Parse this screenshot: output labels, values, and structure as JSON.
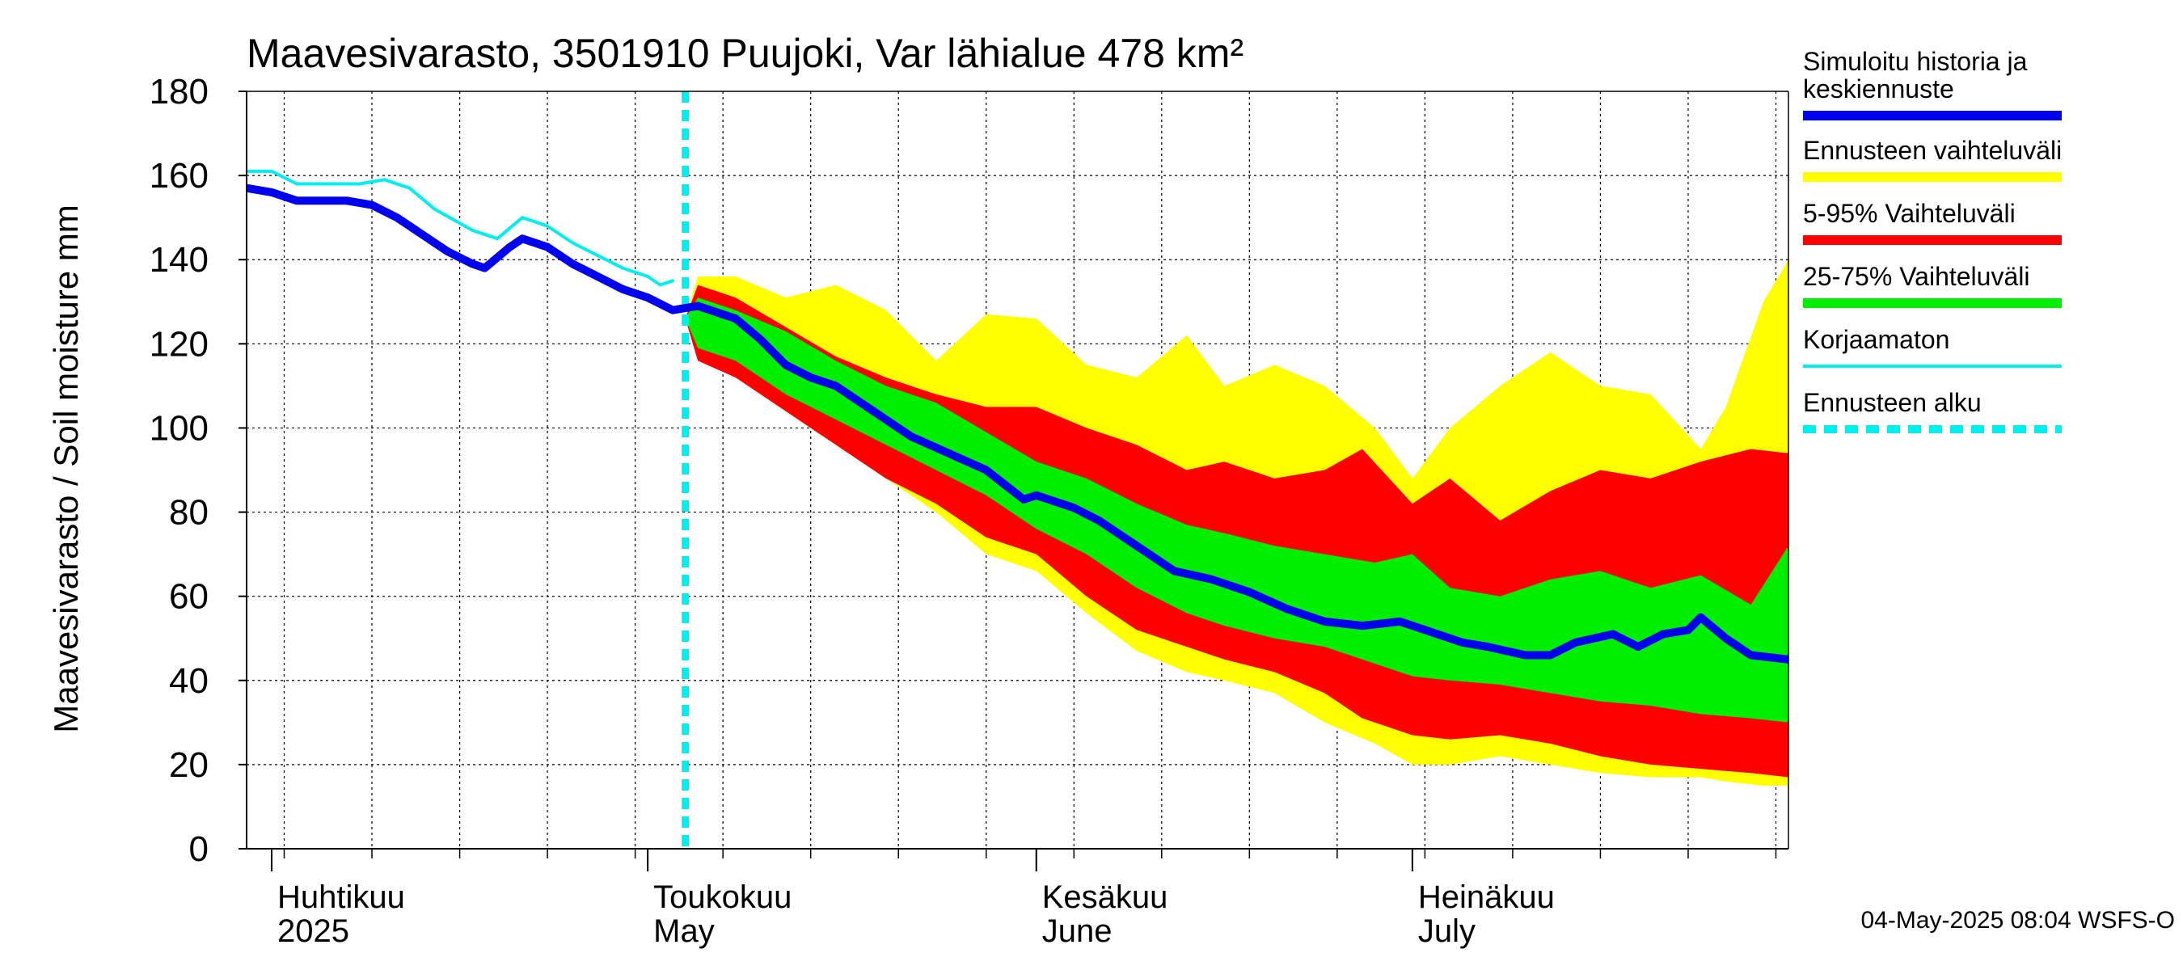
{
  "chart_data": {
    "type": "area",
    "title": "Maavesivarasto, 3501910 Puujoki, Var lähialue 478 km²",
    "ylabel": "Maavesivarasto / Soil moisture   mm",
    "ylim": [
      0,
      180
    ],
    "y_ticks": [
      0,
      20,
      40,
      60,
      80,
      100,
      120,
      140,
      160,
      180
    ],
    "xlim": [
      "2025-03-30",
      "2025-07-31"
    ],
    "forecast_start": "2025-05-04",
    "grid": true,
    "legend_position": "right",
    "month_labels": [
      {
        "date": "2025-04-01",
        "line1": "Huhtikuu",
        "line2": "2025"
      },
      {
        "date": "2025-05-01",
        "line1": "Toukokuu",
        "line2": "May"
      },
      {
        "date": "2025-06-01",
        "line1": "Kesäkuu",
        "line2": "June"
      },
      {
        "date": "2025-07-01",
        "line1": "Heinäkuu",
        "line2": "July"
      }
    ],
    "footer": "04-May-2025 08:04 WSFS-O",
    "colors": {
      "minmax": "#ffff00",
      "p5_95": "#ff0000",
      "p25_75": "#00ee00",
      "median": "#0000ee",
      "uncorrected": "#00eeee",
      "forecast_start": "#00eeee"
    },
    "legend": [
      {
        "key": "median",
        "label": [
          "Simuloitu historia ja",
          "keskiennuste"
        ]
      },
      {
        "key": "minmax",
        "label": [
          "Ennusteen vaihteluväli"
        ]
      },
      {
        "key": "p5_95",
        "label": [
          "5-95% Vaihteluväli"
        ]
      },
      {
        "key": "p25_75",
        "label": [
          "25-75% Vaihteluväli"
        ]
      },
      {
        "key": "uncorrected",
        "label": [
          "Korjaamaton"
        ]
      },
      {
        "key": "forecast_start",
        "label": [
          "Ennusteen alku"
        ]
      }
    ],
    "series": [
      {
        "name": "Simuloitu historia ja keskiennuste",
        "key": "median",
        "points": [
          [
            "2025-03-30",
            157
          ],
          [
            "2025-04-01",
            156
          ],
          [
            "2025-04-03",
            154
          ],
          [
            "2025-04-05",
            154
          ],
          [
            "2025-04-07",
            154
          ],
          [
            "2025-04-09",
            153
          ],
          [
            "2025-04-11",
            150
          ],
          [
            "2025-04-13",
            146
          ],
          [
            "2025-04-15",
            142
          ],
          [
            "2025-04-17",
            139
          ],
          [
            "2025-04-18",
            138
          ],
          [
            "2025-04-20",
            143
          ],
          [
            "2025-04-21",
            145
          ],
          [
            "2025-04-23",
            143
          ],
          [
            "2025-04-25",
            139
          ],
          [
            "2025-04-27",
            136
          ],
          [
            "2025-04-29",
            133
          ],
          [
            "2025-05-01",
            131
          ],
          [
            "2025-05-03",
            128
          ],
          [
            "2025-05-05",
            129
          ],
          [
            "2025-05-08",
            126
          ],
          [
            "2025-05-10",
            121
          ],
          [
            "2025-05-12",
            115
          ],
          [
            "2025-05-14",
            112
          ],
          [
            "2025-05-16",
            110
          ],
          [
            "2025-05-18",
            106
          ],
          [
            "2025-05-20",
            102
          ],
          [
            "2025-05-22",
            98
          ],
          [
            "2025-05-25",
            94
          ],
          [
            "2025-05-28",
            90
          ],
          [
            "2025-05-31",
            83
          ],
          [
            "2025-06-01",
            84
          ],
          [
            "2025-06-04",
            81
          ],
          [
            "2025-06-06",
            78
          ],
          [
            "2025-06-09",
            72
          ],
          [
            "2025-06-12",
            66
          ],
          [
            "2025-06-15",
            64
          ],
          [
            "2025-06-18",
            61
          ],
          [
            "2025-06-21",
            57
          ],
          [
            "2025-06-24",
            54
          ],
          [
            "2025-06-27",
            53
          ],
          [
            "2025-06-30",
            54
          ],
          [
            "2025-07-02",
            52
          ],
          [
            "2025-07-05",
            49
          ],
          [
            "2025-07-07",
            48
          ],
          [
            "2025-07-10",
            46
          ],
          [
            "2025-07-12",
            46
          ],
          [
            "2025-07-14",
            49
          ],
          [
            "2025-07-17",
            51
          ],
          [
            "2025-07-19",
            48
          ],
          [
            "2025-07-21",
            51
          ],
          [
            "2025-07-23",
            52
          ],
          [
            "2025-07-24",
            55
          ],
          [
            "2025-07-26",
            50
          ],
          [
            "2025-07-28",
            46
          ],
          [
            "2025-07-31",
            45
          ]
        ]
      },
      {
        "name": "Korjaamaton",
        "key": "uncorrected",
        "points": [
          [
            "2025-03-30",
            161
          ],
          [
            "2025-04-01",
            161
          ],
          [
            "2025-04-03",
            158
          ],
          [
            "2025-04-06",
            158
          ],
          [
            "2025-04-08",
            158
          ],
          [
            "2025-04-10",
            159
          ],
          [
            "2025-04-12",
            157
          ],
          [
            "2025-04-14",
            152
          ],
          [
            "2025-04-17",
            147
          ],
          [
            "2025-04-19",
            145
          ],
          [
            "2025-04-21",
            150
          ],
          [
            "2025-04-23",
            148
          ],
          [
            "2025-04-25",
            144
          ],
          [
            "2025-04-27",
            141
          ],
          [
            "2025-04-29",
            138
          ],
          [
            "2025-05-01",
            136
          ],
          [
            "2025-05-02",
            134
          ],
          [
            "2025-05-03",
            135
          ]
        ]
      },
      {
        "name": "Ennusteen vaihteluväli",
        "key": "minmax",
        "points": [
          [
            "2025-05-04",
            126,
            126
          ],
          [
            "2025-05-05",
            136,
            118
          ],
          [
            "2025-05-08",
            136,
            112
          ],
          [
            "2025-05-12",
            131,
            104
          ],
          [
            "2025-05-16",
            134,
            96
          ],
          [
            "2025-05-20",
            128,
            88
          ],
          [
            "2025-05-24",
            116,
            80
          ],
          [
            "2025-05-28",
            127,
            70
          ],
          [
            "2025-06-01",
            126,
            66
          ],
          [
            "2025-06-05",
            115,
            56
          ],
          [
            "2025-06-09",
            112,
            47
          ],
          [
            "2025-06-13",
            122,
            42
          ],
          [
            "2025-06-16",
            110,
            40
          ],
          [
            "2025-06-20",
            115,
            37
          ],
          [
            "2025-06-24",
            110,
            30
          ],
          [
            "2025-06-28",
            100,
            25
          ],
          [
            "2025-07-01",
            88,
            20
          ],
          [
            "2025-07-04",
            100,
            20
          ],
          [
            "2025-07-08",
            110,
            22
          ],
          [
            "2025-07-12",
            118,
            20
          ],
          [
            "2025-07-16",
            110,
            18
          ],
          [
            "2025-07-20",
            108,
            17
          ],
          [
            "2025-07-24",
            95,
            17
          ],
          [
            "2025-07-26",
            105,
            16
          ],
          [
            "2025-07-29",
            130,
            15
          ],
          [
            "2025-07-31",
            140,
            15
          ]
        ]
      },
      {
        "name": "5-95% Vaihteluväli",
        "key": "p5_95",
        "points": [
          [
            "2025-05-04",
            126,
            126
          ],
          [
            "2025-05-05",
            134,
            116
          ],
          [
            "2025-05-08",
            131,
            112
          ],
          [
            "2025-05-12",
            124,
            104
          ],
          [
            "2025-05-16",
            117,
            96
          ],
          [
            "2025-05-20",
            112,
            88
          ],
          [
            "2025-05-24",
            108,
            82
          ],
          [
            "2025-05-28",
            105,
            74
          ],
          [
            "2025-06-01",
            105,
            70
          ],
          [
            "2025-06-05",
            100,
            60
          ],
          [
            "2025-06-09",
            96,
            52
          ],
          [
            "2025-06-13",
            90,
            48
          ],
          [
            "2025-06-16",
            92,
            45
          ],
          [
            "2025-06-20",
            88,
            42
          ],
          [
            "2025-06-24",
            90,
            37
          ],
          [
            "2025-06-27",
            95,
            31
          ],
          [
            "2025-07-01",
            82,
            27
          ],
          [
            "2025-07-04",
            88,
            26
          ],
          [
            "2025-07-08",
            78,
            27
          ],
          [
            "2025-07-12",
            85,
            25
          ],
          [
            "2025-07-16",
            90,
            22
          ],
          [
            "2025-07-20",
            88,
            20
          ],
          [
            "2025-07-24",
            92,
            19
          ],
          [
            "2025-07-28",
            95,
            18
          ],
          [
            "2025-07-31",
            94,
            17
          ]
        ]
      },
      {
        "name": "25-75% Vaihteluväli",
        "key": "p25_75",
        "points": [
          [
            "2025-05-04",
            126,
            126
          ],
          [
            "2025-05-05",
            131,
            119
          ],
          [
            "2025-05-08",
            128,
            116
          ],
          [
            "2025-05-12",
            123,
            108
          ],
          [
            "2025-05-16",
            116,
            102
          ],
          [
            "2025-05-20",
            110,
            96
          ],
          [
            "2025-05-24",
            106,
            90
          ],
          [
            "2025-05-28",
            99,
            84
          ],
          [
            "2025-06-01",
            92,
            76
          ],
          [
            "2025-06-05",
            88,
            70
          ],
          [
            "2025-06-09",
            82,
            62
          ],
          [
            "2025-06-13",
            77,
            56
          ],
          [
            "2025-06-16",
            75,
            53
          ],
          [
            "2025-06-20",
            72,
            50
          ],
          [
            "2025-06-24",
            70,
            48
          ],
          [
            "2025-06-28",
            68,
            44
          ],
          [
            "2025-07-01",
            70,
            41
          ],
          [
            "2025-07-04",
            62,
            40
          ],
          [
            "2025-07-08",
            60,
            39
          ],
          [
            "2025-07-12",
            64,
            37
          ],
          [
            "2025-07-16",
            66,
            35
          ],
          [
            "2025-07-20",
            62,
            34
          ],
          [
            "2025-07-24",
            65,
            32
          ],
          [
            "2025-07-28",
            58,
            31
          ],
          [
            "2025-07-31",
            72,
            30
          ]
        ]
      }
    ]
  }
}
